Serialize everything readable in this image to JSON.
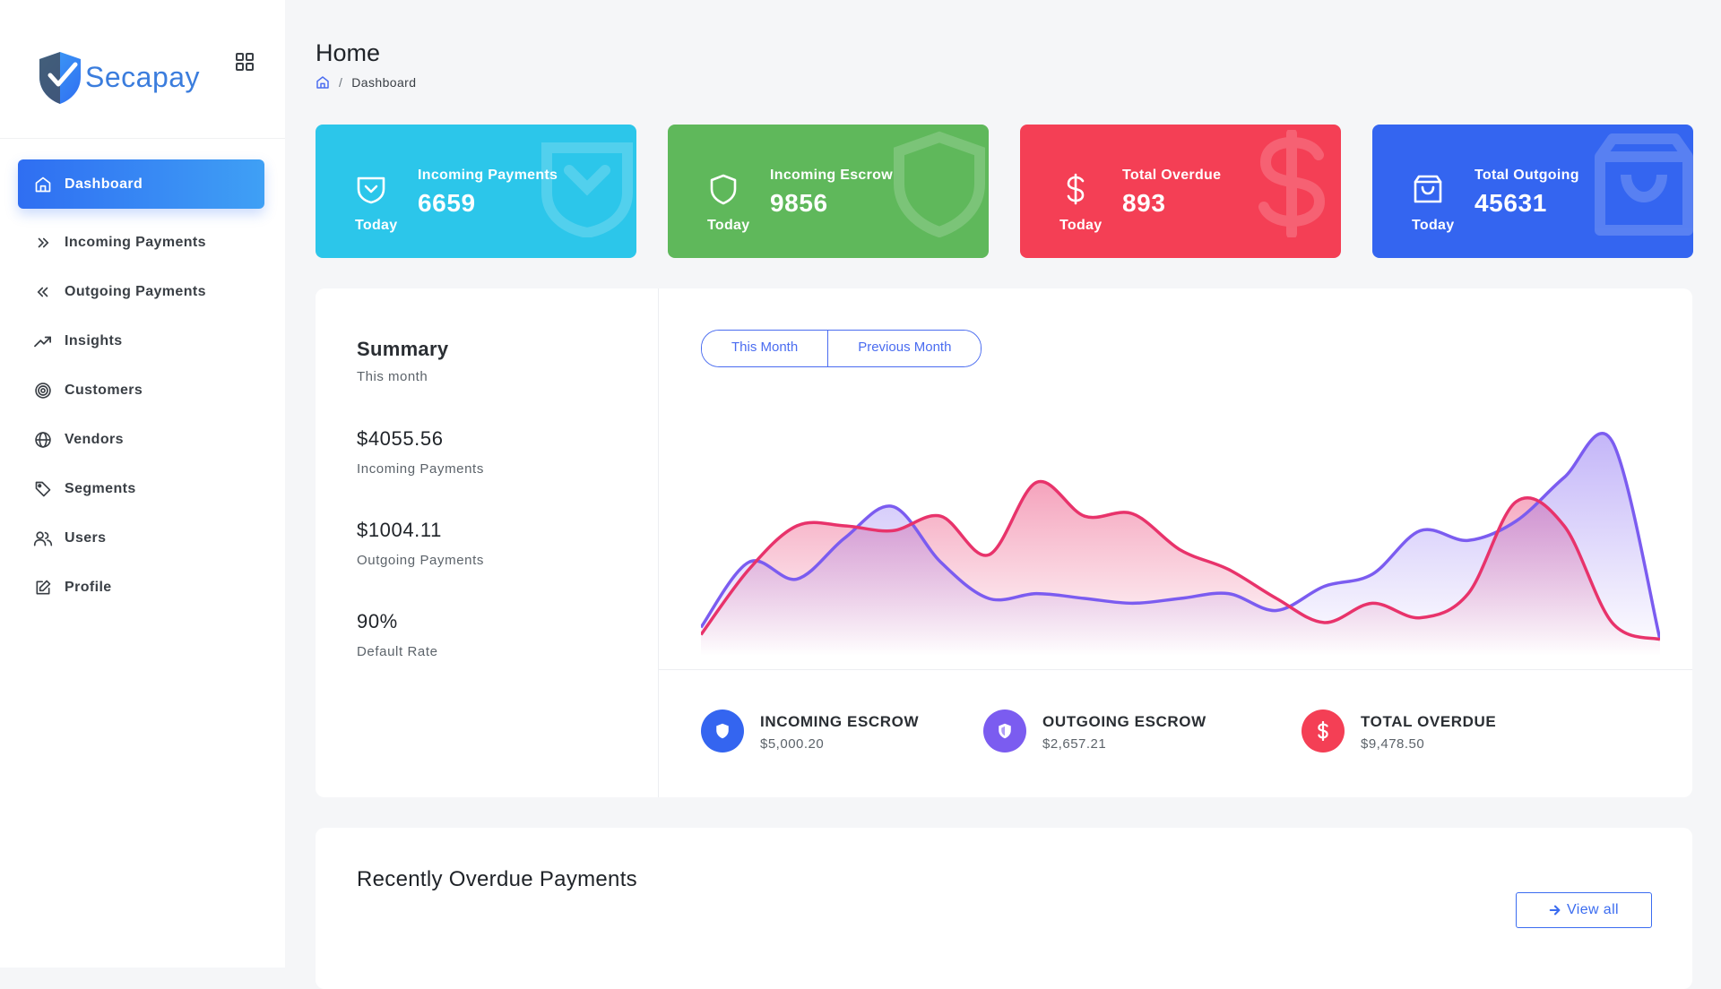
{
  "brand": {
    "name": "Secapay"
  },
  "sidebar": {
    "items": [
      {
        "label": "Dashboard",
        "icon": "home-icon",
        "active": true
      },
      {
        "label": "Incoming Payments",
        "icon": "chevrons-right-icon"
      },
      {
        "label": "Outgoing Payments",
        "icon": "chevrons-left-icon"
      },
      {
        "label": "Insights",
        "icon": "trending-up-icon"
      },
      {
        "label": "Customers",
        "icon": "target-icon"
      },
      {
        "label": "Vendors",
        "icon": "globe-icon"
      },
      {
        "label": "Segments",
        "icon": "tag-icon"
      },
      {
        "label": "Users",
        "icon": "users-icon"
      },
      {
        "label": "Profile",
        "icon": "edit-icon"
      }
    ]
  },
  "header": {
    "title": "Home",
    "breadcrumb": {
      "separator": "/",
      "current": "Dashboard"
    }
  },
  "stats": [
    {
      "title": "Incoming Payments",
      "value": "6659",
      "period": "Today",
      "color": "#2cc6ea",
      "icon": "inbox-shield-icon"
    },
    {
      "title": "Incoming Escrow",
      "value": "9856",
      "period": "Today",
      "color": "#5fb85b",
      "icon": "shield-icon"
    },
    {
      "title": "Total Overdue",
      "value": "893",
      "period": "Today",
      "color": "#f43f55",
      "icon": "dollar-icon"
    },
    {
      "title": "Total Outgoing",
      "value": "45631",
      "period": "Today",
      "color": "#3465f0",
      "icon": "shopping-bag-icon"
    }
  ],
  "summary": {
    "title": "Summary",
    "subtitle": "This month",
    "metrics": [
      {
        "value": "$4055.56",
        "label": "Incoming Payments"
      },
      {
        "value": "$1004.11",
        "label": "Outgoing Payments"
      },
      {
        "value": "90%",
        "label": "Default Rate"
      }
    ]
  },
  "toggle": {
    "this_month": "This Month",
    "previous_month": "Previous Month"
  },
  "chart_data": {
    "type": "area",
    "x": [
      0,
      1,
      2,
      3,
      4,
      5,
      6,
      7,
      8,
      9,
      10,
      11,
      12,
      13,
      14,
      15,
      16,
      17,
      18,
      19,
      20
    ],
    "series": [
      {
        "color": "#e8336b",
        "values": [
          5,
          32,
          50,
          50,
          48,
          54,
          38,
          68,
          54,
          55,
          40,
          32,
          20,
          10,
          18,
          12,
          22,
          60,
          50,
          10,
          3
        ]
      },
      {
        "color": "#7b5cf0",
        "values": [
          8,
          35,
          28,
          45,
          58,
          35,
          20,
          22,
          20,
          18,
          20,
          22,
          15,
          25,
          30,
          48,
          44,
          52,
          70,
          85,
          3
        ]
      }
    ],
    "ylim": [
      0,
      100
    ]
  },
  "legend": [
    {
      "name": "INCOMING ESCROW",
      "value": "$5,000.20",
      "color": "#3465f0",
      "icon": "shield-icon"
    },
    {
      "name": "OUTGOING ESCROW",
      "value": "$2,657.21",
      "color": "#7b5cf0",
      "icon": "shield-half-icon"
    },
    {
      "name": "TOTAL OVERDUE",
      "value": "$9,478.50",
      "color": "#f43f55",
      "icon": "dollar-icon"
    }
  ],
  "overdue": {
    "title": "Recently Overdue Payments",
    "view_all": "View all"
  }
}
